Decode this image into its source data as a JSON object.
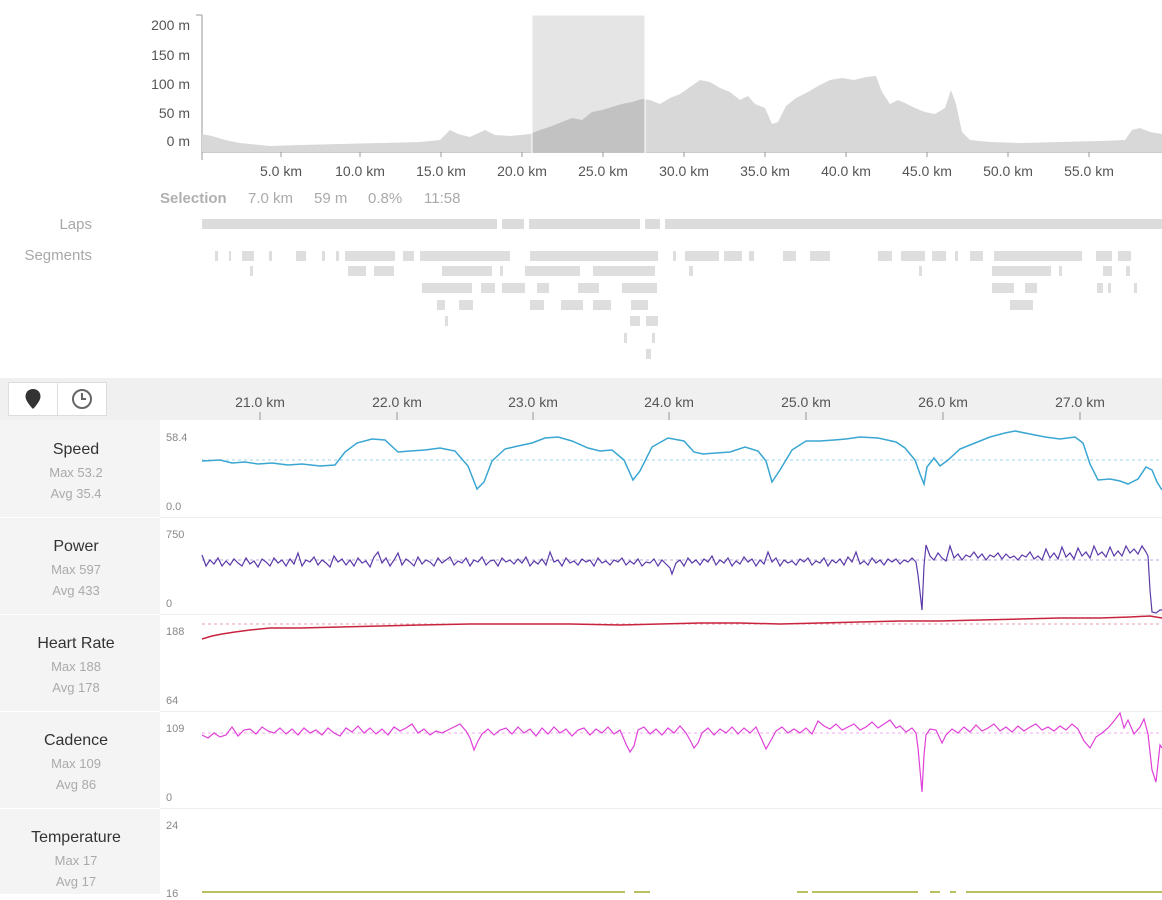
{
  "elevation": {
    "y_axis": [
      "200 m",
      "150 m",
      "100 m",
      "50 m",
      "0 m"
    ],
    "x_axis": [
      "5.0 km",
      "10.0 km",
      "15.0 km",
      "20.0 km",
      "25.0 km",
      "30.0 km",
      "35.0 km",
      "40.0 km",
      "45.0 km",
      "50.0 km",
      "55.0 km"
    ]
  },
  "selection": {
    "label": "Selection",
    "distance": "7.0 km",
    "elevation": "59 m",
    "grade": "0.8%",
    "time": "11:58"
  },
  "rows": {
    "laps": "Laps",
    "segments": "Segments"
  },
  "toolbar": {
    "map_icon": "map-pin-icon",
    "clock_icon": "clock-icon"
  },
  "detail_axis": [
    "21.0 km",
    "22.0 km",
    "23.0 km",
    "24.0 km",
    "25.0 km",
    "26.0 km",
    "27.0 km"
  ],
  "metrics": {
    "speed": {
      "name": "Speed",
      "max": "Max 53.2",
      "avg": "Avg 35.4",
      "top": "58.4",
      "bottom": "0.0",
      "color": "#3aa6d2"
    },
    "power": {
      "name": "Power",
      "max": "Max 597",
      "avg": "Avg 433",
      "top": "750",
      "bottom": "0",
      "color": "#5b3aa8"
    },
    "heart_rate": {
      "name": "Heart Rate",
      "max": "Max 188",
      "avg": "Avg 178",
      "top": "188",
      "bottom": "64",
      "color": "#c8243f"
    },
    "cadence": {
      "name": "Cadence",
      "max": "Max 109",
      "avg": "Avg 86",
      "top": "109",
      "bottom": "0",
      "color": "#e040d8"
    },
    "temperature": {
      "name": "Temperature",
      "max": "Max 17",
      "avg": "Avg 17",
      "top": "24",
      "bottom": "16",
      "color": "#b8c060"
    }
  }
}
